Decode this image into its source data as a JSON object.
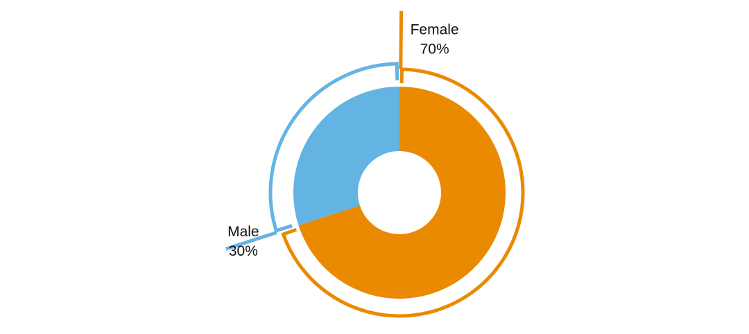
{
  "chart_data": {
    "type": "donut",
    "categories": [
      "Female",
      "Male"
    ],
    "values": [
      70,
      30
    ],
    "value_labels": [
      "70%",
      "30%"
    ],
    "colors": [
      "#ea8a00",
      "#63b4e2"
    ]
  }
}
